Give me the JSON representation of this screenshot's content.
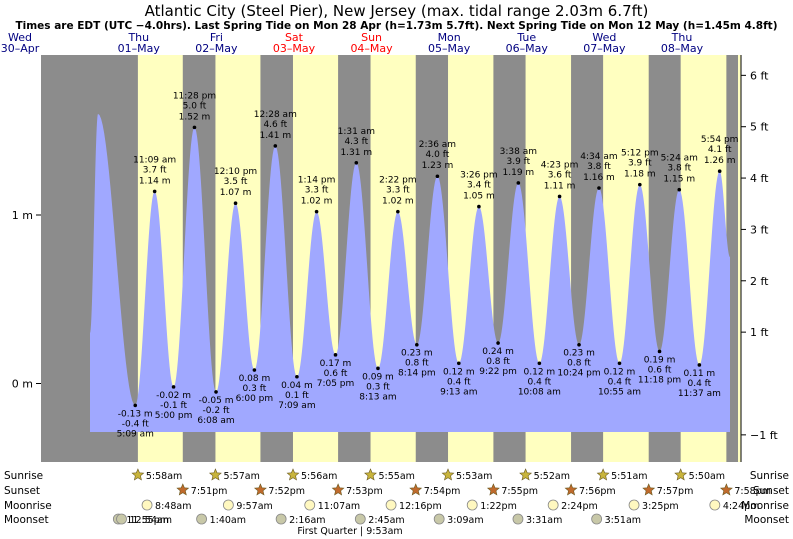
{
  "title": "Atlantic City (Steel Pier), New Jersey (max. tidal range 2.03m 6.7ft)",
  "subtitle": "Times are EDT (UTC −4.0hrs). Last Spring Tide on Mon 28 Apr (h=1.73m 5.7ft). Next Spring Tide on Mon 12 May (h=1.45m 4.8ft)",
  "colors": {
    "night": "#8c8c8c",
    "day": "#ffffc0",
    "water": "#a0a8ff",
    "weekend": "#ff0000",
    "weekday": "#000080"
  },
  "chart_data": {
    "type": "area",
    "xaxis": "date/time (EDT), 30 Apr – 08 May",
    "y_left_unit": "m",
    "y_right_unit": "ft",
    "left_ticks": [
      {
        "v": 0,
        "label": "0 m"
      },
      {
        "v": 1,
        "label": "1 m"
      }
    ],
    "right_ticks": [
      {
        "v": -1,
        "label": "−1 ft"
      },
      {
        "v": 1,
        "label": "1 ft"
      },
      {
        "v": 2,
        "label": "2 ft"
      },
      {
        "v": 3,
        "label": "3 ft"
      },
      {
        "v": 4,
        "label": "4 ft"
      },
      {
        "v": 5,
        "label": "5 ft"
      },
      {
        "v": 6,
        "label": "6 ft"
      }
    ],
    "days": [
      {
        "dow": "Wed",
        "date": "30–Apr",
        "weekend": false
      },
      {
        "dow": "Thu",
        "date": "01–May",
        "weekend": false
      },
      {
        "dow": "Fri",
        "date": "02–May",
        "weekend": false
      },
      {
        "dow": "Sat",
        "date": "03–May",
        "weekend": true
      },
      {
        "dow": "Sun",
        "date": "04–May",
        "weekend": true
      },
      {
        "dow": "Mon",
        "date": "05–May",
        "weekend": false
      },
      {
        "dow": "Tue",
        "date": "06–May",
        "weekend": false
      },
      {
        "dow": "Wed",
        "date": "07–May",
        "weekend": false
      },
      {
        "dow": "Thu",
        "date": "08–May",
        "weekend": false
      }
    ],
    "leading_high_m": 1.6,
    "tides": [
      {
        "day": 1,
        "time": "5:09 am",
        "m": "-0.13 m",
        "ft": "-0.4 ft",
        "v": -0.13,
        "high": false
      },
      {
        "day": 1,
        "time": "11:09 am",
        "m": "1.14 m",
        "ft": "3.7 ft",
        "v": 1.14,
        "high": true
      },
      {
        "day": 1,
        "time": "5:00 pm",
        "m": "-0.02 m",
        "ft": "-0.1 ft",
        "v": -0.02,
        "high": false
      },
      {
        "day": 1,
        "time": "11:28 pm",
        "m": "1.52 m",
        "ft": "5.0 ft",
        "v": 1.52,
        "high": true
      },
      {
        "day": 2,
        "time": "6:08 am",
        "m": "-0.05 m",
        "ft": "-0.2 ft",
        "v": -0.05,
        "high": false
      },
      {
        "day": 2,
        "time": "12:10 pm",
        "m": "1.07 m",
        "ft": "3.5 ft",
        "v": 1.07,
        "high": true
      },
      {
        "day": 2,
        "time": "6:00 pm",
        "m": "0.08 m",
        "ft": "0.3 ft",
        "v": 0.08,
        "high": false
      },
      {
        "day": 3,
        "time": "12:28 am",
        "m": "1.41 m",
        "ft": "4.6 ft",
        "v": 1.41,
        "high": true
      },
      {
        "day": 3,
        "time": "7:09 am",
        "m": "0.04 m",
        "ft": "0.1 ft",
        "v": 0.04,
        "high": false
      },
      {
        "day": 3,
        "time": "1:14 pm",
        "m": "1.02 m",
        "ft": "3.3 ft",
        "v": 1.02,
        "high": true
      },
      {
        "day": 3,
        "time": "7:05 pm",
        "m": "0.17 m",
        "ft": "0.6 ft",
        "v": 0.17,
        "high": false
      },
      {
        "day": 4,
        "time": "1:31 am",
        "m": "1.31 m",
        "ft": "4.3 ft",
        "v": 1.31,
        "high": true
      },
      {
        "day": 4,
        "time": "8:13 am",
        "m": "0.09 m",
        "ft": "0.3 ft",
        "v": 0.09,
        "high": false
      },
      {
        "day": 4,
        "time": "2:22 pm",
        "m": "1.02 m",
        "ft": "3.3 ft",
        "v": 1.02,
        "high": true
      },
      {
        "day": 4,
        "time": "8:14 pm",
        "m": "0.23 m",
        "ft": "0.8 ft",
        "v": 0.23,
        "high": false
      },
      {
        "day": 5,
        "time": "2:36 am",
        "m": "1.23 m",
        "ft": "4.0 ft",
        "v": 1.23,
        "high": true
      },
      {
        "day": 5,
        "time": "9:13 am",
        "m": "0.12 m",
        "ft": "0.4 ft",
        "v": 0.12,
        "high": false
      },
      {
        "day": 5,
        "time": "3:26 pm",
        "m": "1.05 m",
        "ft": "3.4 ft",
        "v": 1.05,
        "high": true
      },
      {
        "day": 5,
        "time": "9:22 pm",
        "m": "0.24 m",
        "ft": "0.8 ft",
        "v": 0.24,
        "high": false
      },
      {
        "day": 6,
        "time": "3:38 am",
        "m": "1.19 m",
        "ft": "3.9 ft",
        "v": 1.19,
        "high": true
      },
      {
        "day": 6,
        "time": "10:08 am",
        "m": "0.12 m",
        "ft": "0.4 ft",
        "v": 0.12,
        "high": false
      },
      {
        "day": 6,
        "time": "4:23 pm",
        "m": "1.11 m",
        "ft": "3.6 ft",
        "v": 1.11,
        "high": true
      },
      {
        "day": 6,
        "time": "10:24 pm",
        "m": "0.23 m",
        "ft": "0.8 ft",
        "v": 0.23,
        "high": false
      },
      {
        "day": 7,
        "time": "4:34 am",
        "m": "1.16 m",
        "ft": "3.8 ft",
        "v": 1.16,
        "high": true
      },
      {
        "day": 7,
        "time": "10:55 am",
        "m": "0.12 m",
        "ft": "0.4 ft",
        "v": 0.12,
        "high": false
      },
      {
        "day": 7,
        "time": "5:12 pm",
        "m": "1.18 m",
        "ft": "3.9 ft",
        "v": 1.18,
        "high": true
      },
      {
        "day": 7,
        "time": "11:18 pm",
        "m": "0.19 m",
        "ft": "0.6 ft",
        "v": 0.19,
        "high": false
      },
      {
        "day": 8,
        "time": "5:24 am",
        "m": "1.15 m",
        "ft": "3.8 ft",
        "v": 1.15,
        "high": true
      },
      {
        "day": 8,
        "time": "11:37 am",
        "m": "0.11 m",
        "ft": "0.4 ft",
        "v": 0.11,
        "high": false
      },
      {
        "day": 8,
        "time": "5:54 pm",
        "m": "1.26 m",
        "ft": "4.1 ft",
        "v": 1.26,
        "high": true
      }
    ]
  },
  "almanac": {
    "rows": [
      {
        "label": "Sunrise",
        "kind": "sunrise",
        "entries": [
          {
            "day": 1,
            "time": "5:58am"
          },
          {
            "day": 2,
            "time": "5:57am"
          },
          {
            "day": 3,
            "time": "5:56am"
          },
          {
            "day": 4,
            "time": "5:55am"
          },
          {
            "day": 5,
            "time": "5:53am"
          },
          {
            "day": 6,
            "time": "5:52am"
          },
          {
            "day": 7,
            "time": "5:51am"
          },
          {
            "day": 8,
            "time": "5:50am"
          }
        ]
      },
      {
        "label": "Sunset",
        "kind": "sunset",
        "entries": [
          {
            "day": 1,
            "time": "7:51pm"
          },
          {
            "day": 2,
            "time": "7:52pm"
          },
          {
            "day": 3,
            "time": "7:53pm"
          },
          {
            "day": 4,
            "time": "7:54pm"
          },
          {
            "day": 5,
            "time": "7:55pm"
          },
          {
            "day": 6,
            "time": "7:56pm"
          },
          {
            "day": 7,
            "time": "7:57pm"
          },
          {
            "day": 8,
            "time": "7:58pm"
          }
        ]
      },
      {
        "label": "Moonrise",
        "kind": "moonrise",
        "entries": [
          {
            "day": 1,
            "time": "8:48am"
          },
          {
            "day": 2,
            "time": "9:57am"
          },
          {
            "day": 3,
            "time": "11:07am"
          },
          {
            "day": 4,
            "time": "12:16pm"
          },
          {
            "day": 5,
            "time": "1:22pm"
          },
          {
            "day": 6,
            "time": "2:24pm"
          },
          {
            "day": 7,
            "time": "3:25pm"
          },
          {
            "day": 8,
            "time": "4:24pm"
          }
        ]
      },
      {
        "label": "Moonset",
        "kind": "moonset",
        "entries": [
          {
            "day": 0,
            "time": "11:55pm"
          },
          {
            "day": 1,
            "time": "12:54am"
          },
          {
            "day": 2,
            "time": "1:40am"
          },
          {
            "day": 3,
            "time": "2:16am"
          },
          {
            "day": 4,
            "time": "2:45am"
          },
          {
            "day": 5,
            "time": "3:09am"
          },
          {
            "day": 6,
            "time": "3:31am"
          },
          {
            "day": 7,
            "time": "3:51am"
          }
        ]
      }
    ],
    "moon_phase": "First Quarter | 9:53am"
  }
}
